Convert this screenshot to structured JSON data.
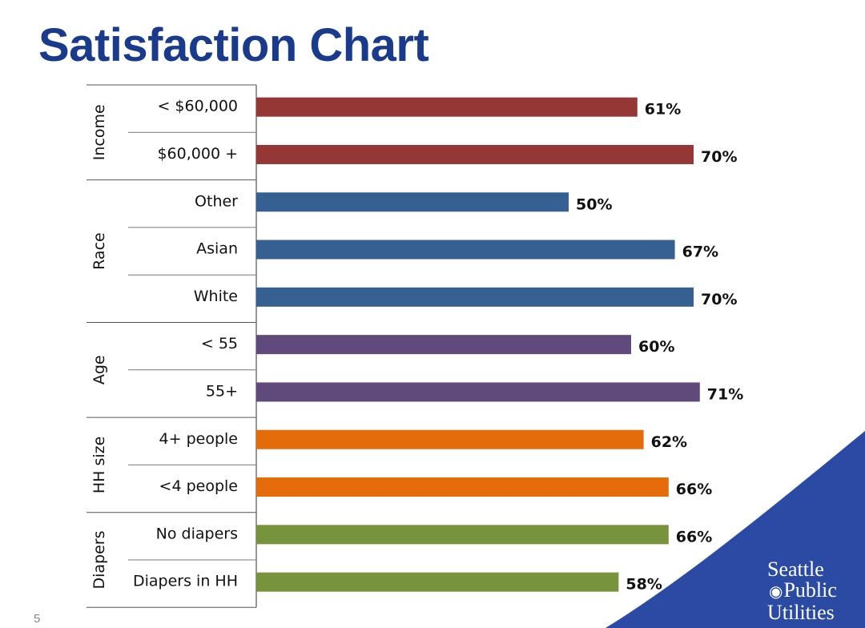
{
  "slide": {
    "title": "Satisfaction Chart",
    "page_number": "5",
    "logo": {
      "line1": "Seattle",
      "line2": "Public",
      "line3": "Utilities",
      "icon": "spu-swirl-icon"
    },
    "colors": {
      "title": "#1a3a8c",
      "corner_swoosh": "#2b4aa3"
    }
  },
  "chart_data": {
    "type": "bar",
    "orientation": "horizontal",
    "title": "",
    "xlabel": "",
    "ylabel": "",
    "xlim": [
      0,
      100
    ],
    "grid": false,
    "legend": "none",
    "groups": [
      {
        "name": "Income",
        "color": "#953735",
        "categories": [
          "< $60,000",
          "$60,000 +"
        ],
        "values": [
          61,
          70
        ]
      },
      {
        "name": "Race",
        "color": "#376092",
        "categories": [
          "Other",
          "Asian",
          "White"
        ],
        "values": [
          50,
          67,
          70
        ]
      },
      {
        "name": "Age",
        "color": "#604a7b",
        "categories": [
          "< 55",
          "55+"
        ],
        "values": [
          60,
          71
        ]
      },
      {
        "name": "HH size",
        "color": "#e46c0a",
        "categories": [
          "4+ people",
          "<4 people"
        ],
        "values": [
          62,
          66
        ]
      },
      {
        "name": "Diapers",
        "color": "#77933c",
        "categories": [
          "No diapers",
          "Diapers in HH"
        ],
        "values": [
          66,
          58
        ]
      }
    ],
    "value_suffix": "%"
  }
}
